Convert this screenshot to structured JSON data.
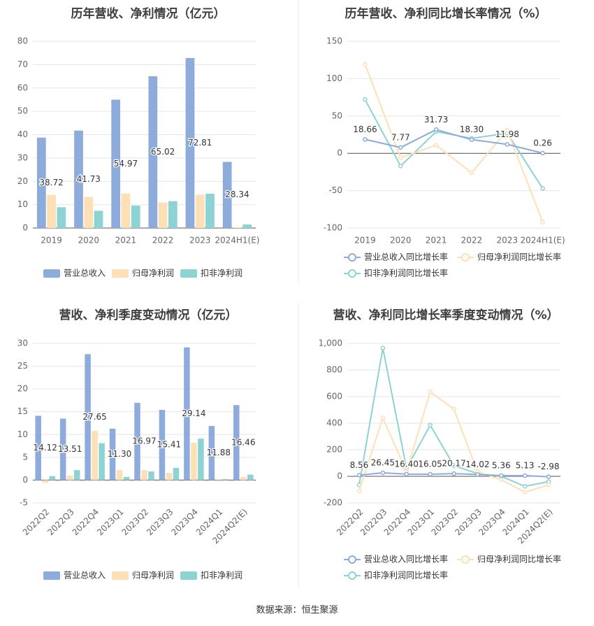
{
  "footer": {
    "source": "数据来源：恒生聚源"
  },
  "colors": {
    "revenue": "#8eacdb",
    "parent_profit": "#fde0b6",
    "adjusted_profit": "#8dd3d3",
    "title": "#3d3d3d",
    "axis_text": "#666666",
    "grid": "#e6e6e6"
  },
  "chart_data": [
    {
      "id": "annual-amounts",
      "type": "bar",
      "title": "历年营收、净利情况（亿元）",
      "categories": [
        "2019",
        "2020",
        "2021",
        "2022",
        "2023",
        "2024H1(E)"
      ],
      "ylim": [
        0,
        80
      ],
      "yticks": [
        "0",
        "10",
        "20",
        "30",
        "40",
        "50",
        "60",
        "70",
        "80"
      ],
      "tick_values": [
        0,
        10,
        20,
        30,
        40,
        50,
        60,
        70,
        80
      ],
      "rotate_labels": false,
      "legend": [
        "营业总收入",
        "归母净利润",
        "扣非净利润"
      ],
      "series": [
        {
          "name": "营业总收入",
          "values": [
            38.72,
            41.73,
            54.97,
            65.02,
            72.81,
            28.34
          ],
          "labels": [
            "38.72",
            "41.73",
            "54.97",
            "65.02",
            "72.81",
            "28.34"
          ]
        },
        {
          "name": "归母净利润",
          "values": [
            14.2,
            13.3,
            14.8,
            10.9,
            14.3,
            0.3
          ]
        },
        {
          "name": "扣非净利润",
          "values": [
            8.9,
            7.4,
            9.6,
            11.5,
            14.7,
            1.5
          ]
        }
      ]
    },
    {
      "id": "annual-growth",
      "type": "line",
      "title": "历年营收、净利同比增长率情况（%）",
      "categories": [
        "2019",
        "2020",
        "2021",
        "2022",
        "2023",
        "2024H1(E)"
      ],
      "ylim": [
        -100,
        150
      ],
      "yticks": [
        "-100",
        "-50",
        "0",
        "50",
        "100",
        "150"
      ],
      "tick_values": [
        -100,
        -50,
        0,
        50,
        100,
        150
      ],
      "rotate_labels": false,
      "legend": [
        "营业总收入同比增长率",
        "归母净利润同比增长率",
        "扣非净利润同比增长率"
      ],
      "series": [
        {
          "name": "营业总收入同比增长率",
          "values": [
            18.66,
            7.77,
            31.73,
            18.3,
            11.98,
            0.26
          ],
          "labels": [
            "18.66",
            "7.77",
            "31.73",
            "18.30",
            "11.98",
            "0.26"
          ]
        },
        {
          "name": "归母净利润同比增长率",
          "values": [
            119,
            -6,
            11,
            -26,
            31,
            -92
          ]
        },
        {
          "name": "扣非净利润同比增长率",
          "values": [
            72,
            -17,
            29,
            20,
            27,
            -47
          ]
        }
      ]
    },
    {
      "id": "quarterly-amounts",
      "type": "bar",
      "title": "营收、净利季度变动情况（亿元）",
      "categories": [
        "2022Q2",
        "2022Q3",
        "2022Q4",
        "2023Q1",
        "2023Q2",
        "2023Q3",
        "2023Q4",
        "2024Q1",
        "2024Q2(E)"
      ],
      "ylim": [
        -5,
        30
      ],
      "yticks": [
        "-5",
        "0",
        "5",
        "10",
        "15",
        "20",
        "25",
        "30"
      ],
      "tick_values": [
        -5,
        0,
        5,
        10,
        15,
        20,
        25,
        30
      ],
      "rotate_labels": true,
      "legend": [
        "营业总收入",
        "归母净利润",
        "扣非净利润"
      ],
      "series": [
        {
          "name": "营业总收入",
          "values": [
            14.12,
            13.51,
            27.65,
            11.3,
            16.97,
            15.41,
            29.14,
            11.88,
            16.46
          ],
          "labels": [
            "14.12",
            "13.51",
            "27.65",
            "11.30",
            "16.97",
            "15.41",
            "29.14",
            "11.88",
            "16.46"
          ]
        },
        {
          "name": "归母净利润",
          "values": [
            -0.6,
            1.0,
            10.8,
            2.2,
            2.2,
            1.6,
            8.2,
            -0.3,
            0.7
          ]
        },
        {
          "name": "扣非净利润",
          "values": [
            0.9,
            2.2,
            8.1,
            0.7,
            1.9,
            2.7,
            9.1,
            0.2,
            1.2
          ]
        }
      ]
    },
    {
      "id": "quarterly-growth",
      "type": "line",
      "title": "营收、净利同比增长率季度变动情况（%）",
      "categories": [
        "2022Q2",
        "2022Q3",
        "2022Q4",
        "2023Q1",
        "2023Q2",
        "2023Q3",
        "2023Q4",
        "2024Q1",
        "2024Q2(E)"
      ],
      "ylim": [
        -200,
        1000
      ],
      "yticks": [
        "-200",
        "0",
        "200",
        "400",
        "600",
        "800",
        "1,000"
      ],
      "tick_values": [
        -200,
        0,
        200,
        400,
        600,
        800,
        1000
      ],
      "rotate_labels": true,
      "legend": [
        "营业总收入同比增长率",
        "归母净利润同比增长率",
        "扣非净利润同比增长率"
      ],
      "series": [
        {
          "name": "营业总收入同比增长率",
          "values": [
            8.56,
            26.45,
            16.4,
            16.05,
            20.17,
            14.02,
            5.36,
            5.13,
            -2.98
          ],
          "labels": [
            "8.56",
            "26.45",
            "16.40",
            "16.05",
            "20.17",
            "14.02",
            "5.36",
            "5.13",
            "-2.98"
          ]
        },
        {
          "name": "归母净利润同比增长率",
          "values": [
            -110,
            440,
            35,
            635,
            505,
            35,
            -25,
            -120,
            -65
          ]
        },
        {
          "name": "扣非净利润同比增长率",
          "values": [
            -65,
            965,
            60,
            385,
            80,
            20,
            0,
            -75,
            -40
          ]
        }
      ]
    }
  ]
}
